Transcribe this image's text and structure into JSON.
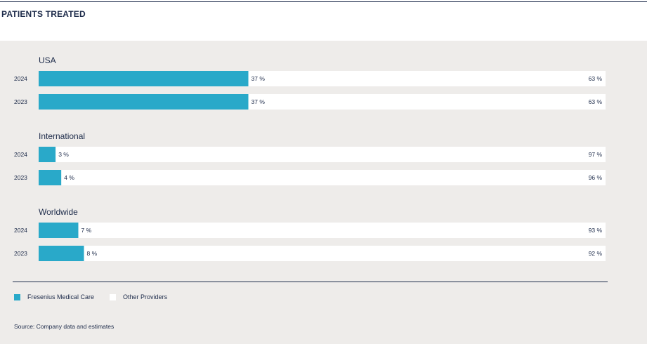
{
  "title": "PATIENTS TREATED",
  "colors": {
    "primary": "#29a9c9",
    "secondary": "#ffffff",
    "text": "#1d2b4a",
    "panel": "#eeecea"
  },
  "chart_data": {
    "type": "bar",
    "orientation": "horizontal",
    "stacked": true,
    "unit": "%",
    "xlim": [
      0,
      100
    ],
    "groups": [
      {
        "label": "USA",
        "rows": [
          {
            "year": "2024",
            "values": [
              37,
              63
            ],
            "labels": [
              "37 %",
              "63 %"
            ]
          },
          {
            "year": "2023",
            "values": [
              37,
              63
            ],
            "labels": [
              "37 %",
              "63 %"
            ]
          }
        ]
      },
      {
        "label": "International",
        "rows": [
          {
            "year": "2024",
            "values": [
              3,
              97
            ],
            "labels": [
              "3 %",
              "97 %"
            ]
          },
          {
            "year": "2023",
            "values": [
              4,
              96
            ],
            "labels": [
              "4 %",
              "96 %"
            ]
          }
        ]
      },
      {
        "label": "Worldwide",
        "rows": [
          {
            "year": "2024",
            "values": [
              7,
              93
            ],
            "labels": [
              "7 %",
              "93 %"
            ]
          },
          {
            "year": "2023",
            "values": [
              8,
              92
            ],
            "labels": [
              "8 %",
              "92 %"
            ]
          }
        ]
      }
    ],
    "series": [
      {
        "name": "Fresenius Medical Care",
        "color": "#29a9c9"
      },
      {
        "name": "Other Providers",
        "color": "#ffffff"
      }
    ],
    "legend": "bottom-left",
    "grid": false
  },
  "legend": {
    "items": [
      "Fresenius Medical Care",
      "Other Providers"
    ]
  },
  "source": "Source: Company data and estimates"
}
